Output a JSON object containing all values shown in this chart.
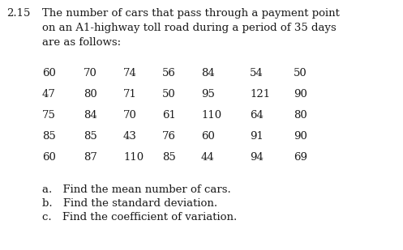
{
  "problem_number": "2.15",
  "title_lines": [
    "The number of cars that pass through a payment point",
    "on an A1-highway toll road during a period of 35 days",
    "are as follows:"
  ],
  "data_rows": [
    [
      60,
      70,
      74,
      56,
      84,
      54,
      50
    ],
    [
      47,
      80,
      71,
      50,
      95,
      121,
      90
    ],
    [
      75,
      84,
      70,
      61,
      110,
      64,
      80
    ],
    [
      85,
      85,
      43,
      76,
      60,
      91,
      90
    ],
    [
      60,
      87,
      110,
      85,
      44,
      94,
      69
    ]
  ],
  "questions": [
    "a. Find the mean number of cars.",
    "b. Find the standard deviation.",
    "c. Find the coefficient of variation."
  ],
  "bg_color": "#ffffff",
  "text_color": "#1a1a1a",
  "font_size": 9.5
}
